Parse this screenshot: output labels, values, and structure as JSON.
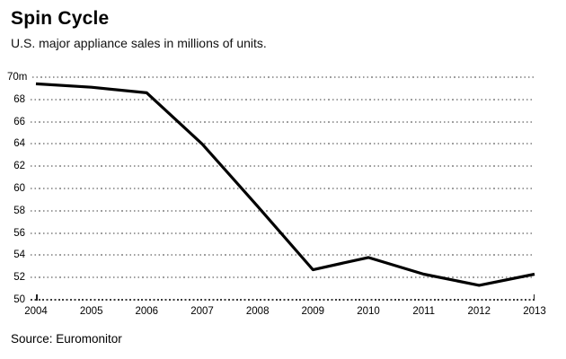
{
  "header": {
    "title": "Spin Cycle",
    "subtitle": "U.S. major appliance sales in millions of units."
  },
  "footer": {
    "source": "Source: Euromonitor"
  },
  "chart_data": {
    "type": "line",
    "title": "Spin Cycle",
    "subtitle": "U.S. major appliance sales in millions of units.",
    "categories": [
      "2004",
      "2005",
      "2006",
      "2007",
      "2008",
      "2009",
      "2010",
      "2011",
      "2012",
      "2013"
    ],
    "series": [
      {
        "name": "U.S. major appliance sales (millions of units)",
        "values": [
          69.4,
          69.1,
          68.6,
          64.0,
          58.4,
          52.7,
          53.8,
          52.3,
          51.3,
          52.3
        ]
      }
    ],
    "xlabel": "",
    "ylabel": "millions of units",
    "ylim": [
      50,
      70
    ],
    "ytick_step": 2,
    "yticks": [
      "70m",
      "68",
      "66",
      "64",
      "62",
      "60",
      "58",
      "56",
      "54",
      "52",
      "50"
    ],
    "grid": "horizontal dotted",
    "legend": "none",
    "source": "Source: Euromonitor"
  },
  "colors": {
    "background": "#ffffff",
    "line": "#000000",
    "grid": "#9e9e9e",
    "axis": "#3c3c3c",
    "text": "#000000"
  }
}
